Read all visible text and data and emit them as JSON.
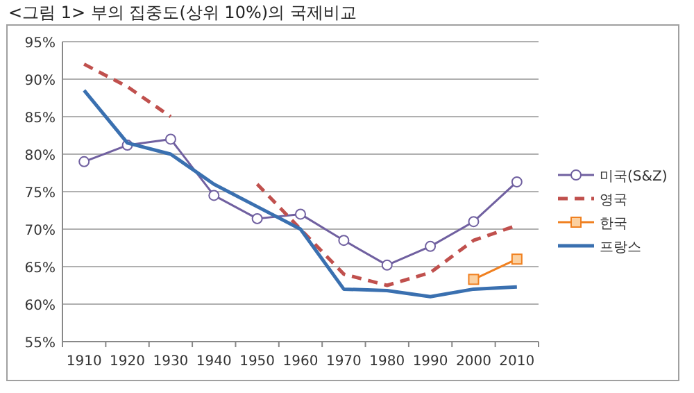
{
  "chart_data": {
    "type": "line",
    "title": "<그림 1> 부의 집중도(상위 10%)의 국제비교",
    "categories": [
      "1910",
      "1920",
      "1930",
      "1940",
      "1950",
      "1960",
      "1970",
      "1980",
      "1990",
      "2000",
      "2010"
    ],
    "series": [
      {
        "name": "미국(S&Z)",
        "color": "#7060a0",
        "marker": "circle",
        "line_style": "solid",
        "values": [
          79,
          81.2,
          82,
          74.5,
          71.4,
          72,
          68.5,
          65.2,
          67.7,
          71,
          76.3
        ]
      },
      {
        "name": "영국",
        "color": "#c0504d",
        "marker": "none",
        "line_style": "dashed",
        "values": [
          92,
          89,
          85,
          null,
          76,
          70,
          64,
          62.5,
          64.2,
          68.5,
          70.5
        ]
      },
      {
        "name": "한국",
        "color": "#f08020",
        "marker": "square",
        "line_style": "solid",
        "values": [
          null,
          null,
          null,
          null,
          null,
          null,
          null,
          null,
          null,
          63.3,
          66
        ]
      },
      {
        "name": "프랑스",
        "color": "#3a70b0",
        "marker": "none",
        "line_style": "solid",
        "values": [
          88.5,
          81.5,
          80,
          76,
          73,
          70,
          62,
          61.8,
          61,
          62,
          62.3
        ]
      }
    ],
    "ylim": [
      55,
      95
    ],
    "yticks": [
      {
        "value": 55,
        "label": "55%"
      },
      {
        "value": 60,
        "label": "60%"
      },
      {
        "value": 65,
        "label": "65%"
      },
      {
        "value": 70,
        "label": "70%"
      },
      {
        "value": 75,
        "label": "75%"
      },
      {
        "value": 80,
        "label": "80%"
      },
      {
        "value": 85,
        "label": "85%"
      },
      {
        "value": 90,
        "label": "90%"
      },
      {
        "value": 95,
        "label": "95%"
      }
    ],
    "grid": "y",
    "legend": "right"
  }
}
